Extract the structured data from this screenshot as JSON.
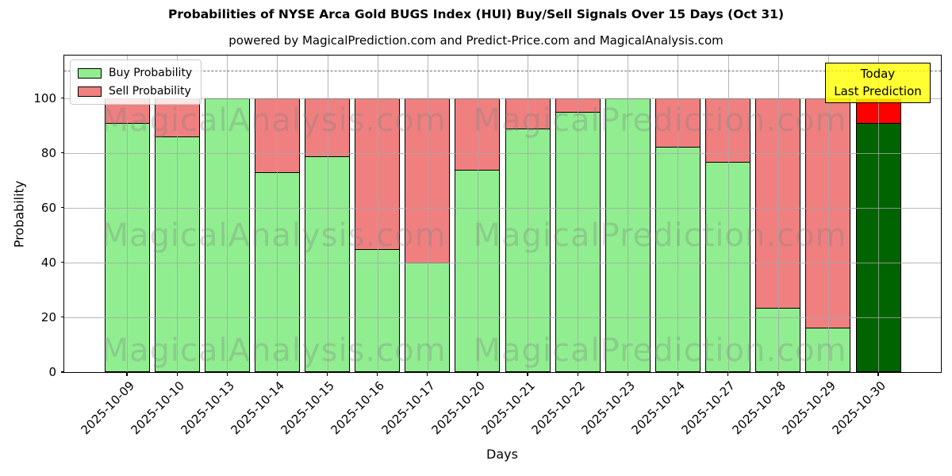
{
  "chart_data": {
    "type": "bar",
    "stacked": true,
    "title": "Probabilities of NYSE Arca Gold BUGS Index (HUI) Buy/Sell Signals Over 15 Days (Oct 31)",
    "subtitle": "powered by MagicalPrediction.com and Predict-Price.com and MagicalAnalysis.com",
    "xlabel": "Days",
    "ylabel": "Probability",
    "ylim": [
      0,
      115.5
    ],
    "yticks": [
      0,
      20,
      40,
      60,
      80,
      100
    ],
    "grid": true,
    "dashed_line_y": 110,
    "legend_position": "upper-left",
    "categories": [
      "2025-10-09",
      "2025-10-10",
      "2025-10-13",
      "2025-10-14",
      "2025-10-15",
      "2025-10-16",
      "2025-10-17",
      "2025-10-20",
      "2025-10-21",
      "2025-10-22",
      "2025-10-23",
      "2025-10-24",
      "2025-10-27",
      "2025-10-28",
      "2025-10-29",
      "2025-10-30"
    ],
    "series": [
      {
        "name": "Buy Probability",
        "color": "#90EE90",
        "values": [
          91,
          86,
          100,
          73,
          79,
          45,
          40,
          74,
          89,
          95,
          100,
          82.5,
          77,
          23.5,
          16.5,
          91
        ]
      },
      {
        "name": "Sell Probability",
        "color": "#F08080",
        "values": [
          9,
          14,
          0,
          27,
          21,
          55,
          60,
          26,
          11,
          5,
          0,
          17.5,
          23,
          76.5,
          83.5,
          9
        ]
      }
    ],
    "today_bar": {
      "index": 15,
      "buy_color": "#006400",
      "sell_color": "#FF0000"
    },
    "annotation": {
      "lines": [
        "Today",
        "Last Prediction"
      ],
      "bg": "#FFFF00",
      "border": "#000000"
    },
    "watermarks": {
      "left": "MagicalAnalysis.com",
      "right": "MagicalPrediction.com"
    },
    "colors": {
      "grid": "#A5A5A5",
      "bar_edge": "#000000",
      "dashed_line": "#5F5F5F"
    }
  }
}
